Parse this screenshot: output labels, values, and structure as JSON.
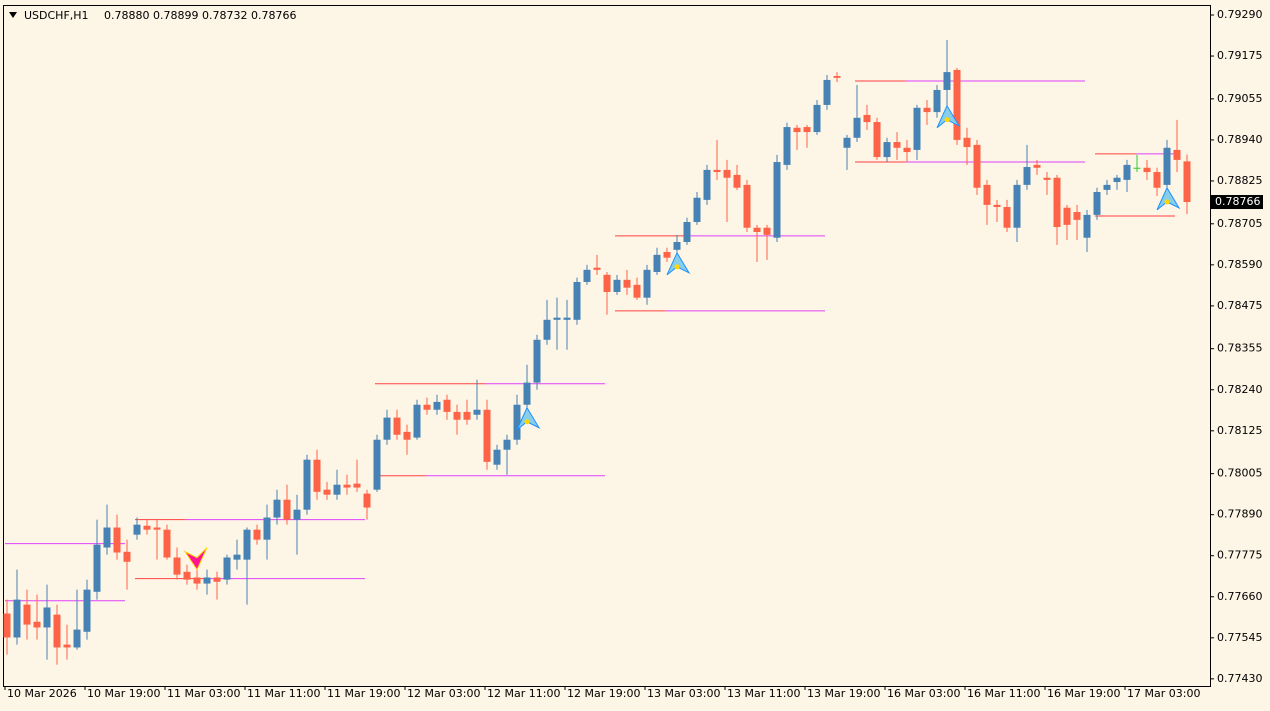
{
  "chart_data": {
    "type": "candlestick",
    "symbol": "USDCHF,H1",
    "quote": "0.78880 0.78899 0.78732 0.78766",
    "ylim": [
      0.7741,
      0.79318
    ],
    "yticks": [
      {
        "value": 0.7929,
        "label": "0.79290"
      },
      {
        "value": 0.79175,
        "label": "0.79175"
      },
      {
        "value": 0.79055,
        "label": "0.79055"
      },
      {
        "value": 0.7894,
        "label": "0.78940"
      },
      {
        "value": 0.78825,
        "label": "0.78825"
      },
      {
        "value": 0.78705,
        "label": "0.78705"
      },
      {
        "value": 0.7859,
        "label": "0.78590"
      },
      {
        "value": 0.78475,
        "label": "0.78475"
      },
      {
        "value": 0.78355,
        "label": "0.78355"
      },
      {
        "value": 0.7824,
        "label": "0.78240"
      },
      {
        "value": 0.78125,
        "label": "0.78125"
      },
      {
        "value": 0.78005,
        "label": "0.78005"
      },
      {
        "value": 0.7789,
        "label": "0.77890"
      },
      {
        "value": 0.77775,
        "label": "0.77775"
      },
      {
        "value": 0.7766,
        "label": "0.77660"
      },
      {
        "value": 0.77545,
        "label": "0.77545"
      },
      {
        "value": 0.7743,
        "label": "0.77430"
      }
    ],
    "last_price": {
      "value": 0.78766,
      "label": "0.78766"
    },
    "time_labels": [
      "10 Mar 2026",
      "10 Mar 19:00",
      "11 Mar 03:00",
      "11 Mar 11:00",
      "11 Mar 19:00",
      "12 Mar 03:00",
      "12 Mar 11:00",
      "12 Mar 19:00",
      "13 Mar 03:00",
      "13 Mar 11:00",
      "13 Mar 19:00",
      "16 Mar 03:00",
      "16 Mar 11:00",
      "16 Mar 19:00",
      "17 Mar 03:00"
    ],
    "bull_color": "#4682b4",
    "bear_color": "#ff6347",
    "doji_color": "#32cd32",
    "level_colors": [
      "#ff4040",
      "#e040fb"
    ],
    "open": [
      0.77613,
      0.77546,
      0.77638,
      0.7759,
      0.77574,
      0.7761,
      0.77526,
      0.77518,
      0.77562,
      0.77674,
      0.77798,
      0.77854,
      0.77786,
      0.77834,
      0.77859,
      0.77854,
      0.77848,
      0.7777,
      0.7773,
      0.77714,
      0.77697,
      0.77714,
      0.77708,
      0.77764,
      0.77764,
      0.77848,
      0.7782,
      0.77882,
      0.77932,
      0.77876,
      0.77904,
      0.78044,
      0.7796,
      0.77946,
      0.77974,
      0.77977,
      0.77949,
      0.7796,
      0.781,
      0.78162,
      0.78122,
      0.78106,
      0.78198,
      0.78184,
      0.78212,
      0.78178,
      0.78178,
      0.7817,
      0.78184,
      0.7803,
      0.78072,
      0.781,
      0.78198,
      0.7826,
      0.7838,
      0.78436,
      0.78436,
      0.78436,
      0.78542,
      0.78582,
      0.78562,
      0.78514,
      0.78548,
      0.78534,
      0.78498,
      0.7857,
      0.78626,
      0.78632,
      0.78654,
      0.7871,
      0.78772,
      0.78856,
      0.78856,
      0.78842,
      0.78814,
      0.78694,
      0.78694,
      0.78666,
      0.7887,
      0.78974,
      0.78976,
      0.78962,
      0.79038,
      0.79119,
      0.78918,
      0.78946,
      0.7901,
      0.7899,
      0.78892,
      0.78934,
      0.78918,
      0.78912,
      0.7903,
      0.79018,
      0.7908,
      0.79136,
      0.78946,
      0.78926,
      0.78814,
      0.78758,
      0.78752,
      0.78694,
      0.78814,
      0.7887,
      0.78834,
      0.78834,
      0.7875,
      0.78738,
      0.78666,
      0.7873,
      0.788,
      0.78822,
      0.78828,
      0.78862,
      0.78862,
      0.7885,
      0.78814,
      0.78912,
      0.7888
    ],
    "high": [
      0.77652,
      0.77736,
      0.7768,
      0.77666,
      0.77694,
      0.77638,
      0.77582,
      0.7768,
      0.77708,
      0.77876,
      0.77918,
      0.7789,
      0.7782,
      0.77882,
      0.77876,
      0.77876,
      0.77862,
      0.77798,
      0.7775,
      0.77736,
      0.77736,
      0.7773,
      0.77778,
      0.7782,
      0.77854,
      0.77862,
      0.77918,
      0.7796,
      0.77974,
      0.77946,
      0.78058,
      0.78072,
      0.77982,
      0.78016,
      0.78002,
      0.78044,
      0.7796,
      0.78114,
      0.78184,
      0.78184,
      0.78142,
      0.78212,
      0.78218,
      0.78226,
      0.78226,
      0.78198,
      0.78212,
      0.78268,
      0.78212,
      0.78086,
      0.78114,
      0.78226,
      0.7831,
      0.78394,
      0.78492,
      0.78498,
      0.78492,
      0.78554,
      0.7859,
      0.78618,
      0.7857,
      0.78562,
      0.78576,
      0.78554,
      0.7859,
      0.78638,
      0.78638,
      0.78674,
      0.78722,
      0.78794,
      0.7887,
      0.7894,
      0.78884,
      0.7887,
      0.78828,
      0.78702,
      0.78702,
      0.78898,
      0.78988,
      0.78982,
      0.78982,
      0.79052,
      0.79122,
      0.7913,
      0.78954,
      0.79094,
      0.79038,
      0.79002,
      0.78946,
      0.78962,
      0.7894,
      0.79038,
      0.79052,
      0.79094,
      0.7922,
      0.79142,
      0.78974,
      0.7894,
      0.78828,
      0.78772,
      0.78772,
      0.78828,
      0.78926,
      0.78884,
      0.7885,
      0.78842,
      0.78758,
      0.78758,
      0.78744,
      0.78806,
      0.78828,
      0.78842,
      0.78884,
      0.78898,
      0.78884,
      0.78862,
      0.7894,
      0.78996,
      0.78899
    ],
    "low": [
      0.77498,
      0.77526,
      0.7754,
      0.7754,
      0.77484,
      0.7747,
      0.77484,
      0.77512,
      0.7754,
      0.77652,
      0.77778,
      0.77764,
      0.7768,
      0.7782,
      0.77834,
      0.77764,
      0.77764,
      0.77708,
      0.77694,
      0.7768,
      0.77666,
      0.77652,
      0.77694,
      0.77736,
      0.77638,
      0.77806,
      0.77764,
      0.77862,
      0.77862,
      0.77778,
      0.7789,
      0.77932,
      0.77932,
      0.77932,
      0.77946,
      0.77954,
      0.77876,
      0.77954,
      0.78086,
      0.781,
      0.78058,
      0.781,
      0.7817,
      0.7817,
      0.78156,
      0.78114,
      0.78142,
      0.78156,
      0.78016,
      0.78016,
      0.78002,
      0.78086,
      0.78184,
      0.7824,
      0.78366,
      0.78352,
      0.78352,
      0.78422,
      0.78534,
      0.78562,
      0.7845,
      0.78506,
      0.78506,
      0.78492,
      0.78478,
      0.78562,
      0.78598,
      0.78618,
      0.78646,
      0.78702,
      0.78758,
      0.78828,
      0.7871,
      0.788,
      0.78682,
      0.78598,
      0.78604,
      0.78654,
      0.78856,
      0.78912,
      0.78918,
      0.78954,
      0.79024,
      0.79102,
      0.78856,
      0.78934,
      0.78968,
      0.78884,
      0.78878,
      0.78884,
      0.78878,
      0.78884,
      0.78982,
      0.79002,
      0.7903,
      0.78926,
      0.7887,
      0.78786,
      0.78702,
      0.7871,
      0.78682,
      0.78654,
      0.788,
      0.78842,
      0.78786,
      0.78646,
      0.7866,
      0.7866,
      0.78626,
      0.78716,
      0.78786,
      0.788,
      0.78794,
      0.7885,
      0.78828,
      0.78783,
      0.788,
      0.7885,
      0.78732
    ],
    "close": [
      0.77546,
      0.77652,
      0.77582,
      0.77574,
      0.7763,
      0.77518,
      0.77518,
      0.77568,
      0.7768,
      0.77806,
      0.77854,
      0.77784,
      0.77758,
      0.77862,
      0.77848,
      0.77848,
      0.7777,
      0.77722,
      0.77708,
      0.77697,
      0.77714,
      0.77702,
      0.7777,
      0.77778,
      0.77848,
      0.7782,
      0.77882,
      0.77932,
      0.77876,
      0.77904,
      0.78044,
      0.77954,
      0.77946,
      0.77974,
      0.77966,
      0.77966,
      0.7791,
      0.781,
      0.78162,
      0.78114,
      0.781,
      0.78198,
      0.78184,
      0.78206,
      0.78178,
      0.78156,
      0.78156,
      0.78184,
      0.78038,
      0.78072,
      0.781,
      0.78198,
      0.7826,
      0.7838,
      0.78436,
      0.78442,
      0.78442,
      0.78542,
      0.78576,
      0.78576,
      0.78514,
      0.78548,
      0.78526,
      0.78498,
      0.78576,
      0.78618,
      0.7861,
      0.78654,
      0.7871,
      0.78778,
      0.78856,
      0.7885,
      0.78834,
      0.78806,
      0.78694,
      0.78682,
      0.78674,
      0.78878,
      0.78976,
      0.78962,
      0.78962,
      0.79038,
      0.79108,
      0.79114,
      0.78946,
      0.79002,
      0.7899,
      0.78892,
      0.78934,
      0.78918,
      0.78906,
      0.7903,
      0.79018,
      0.7908,
      0.7913,
      0.7894,
      0.7892,
      0.78806,
      0.78758,
      0.78752,
      0.78694,
      0.78814,
      0.78864,
      0.78862,
      0.78828,
      0.78696,
      0.78702,
      0.78716,
      0.7873,
      0.78794,
      0.78814,
      0.78834,
      0.7887,
      0.78862,
      0.7885,
      0.78806,
      0.78918,
      0.78884,
      0.78766
    ],
    "levels": [
      {
        "price": 0.77809,
        "from": 0,
        "split": 0,
        "to": 12
      },
      {
        "price": 0.77649,
        "from": 0,
        "split": 0,
        "to": 12
      },
      {
        "price": 0.77876,
        "from": 13,
        "split": 18,
        "to": 36
      },
      {
        "price": 0.77711,
        "from": 13,
        "split": 20,
        "to": 36
      },
      {
        "price": 0.78257,
        "from": 37,
        "split": 48,
        "to": 60
      },
      {
        "price": 0.77999,
        "from": 37,
        "split": 42,
        "to": 60
      },
      {
        "price": 0.78671,
        "from": 61,
        "split": 68,
        "to": 82
      },
      {
        "price": 0.78461,
        "from": 61,
        "split": 66,
        "to": 82
      },
      {
        "price": 0.79105,
        "from": 85,
        "split": 90,
        "to": 108
      },
      {
        "price": 0.78878,
        "from": 85,
        "split": 90,
        "to": 108
      },
      {
        "price": 0.78901,
        "from": 109,
        "split": 113,
        "to": 117
      },
      {
        "price": 0.78727,
        "from": 109,
        "split": 117,
        "to": 117
      }
    ],
    "signals": [
      {
        "bar": 19,
        "dir": "sell"
      },
      {
        "bar": 52,
        "dir": "buy"
      },
      {
        "bar": 67,
        "dir": "buy"
      },
      {
        "bar": 94,
        "dir": "buy"
      },
      {
        "bar": 116,
        "dir": "buy"
      }
    ]
  }
}
